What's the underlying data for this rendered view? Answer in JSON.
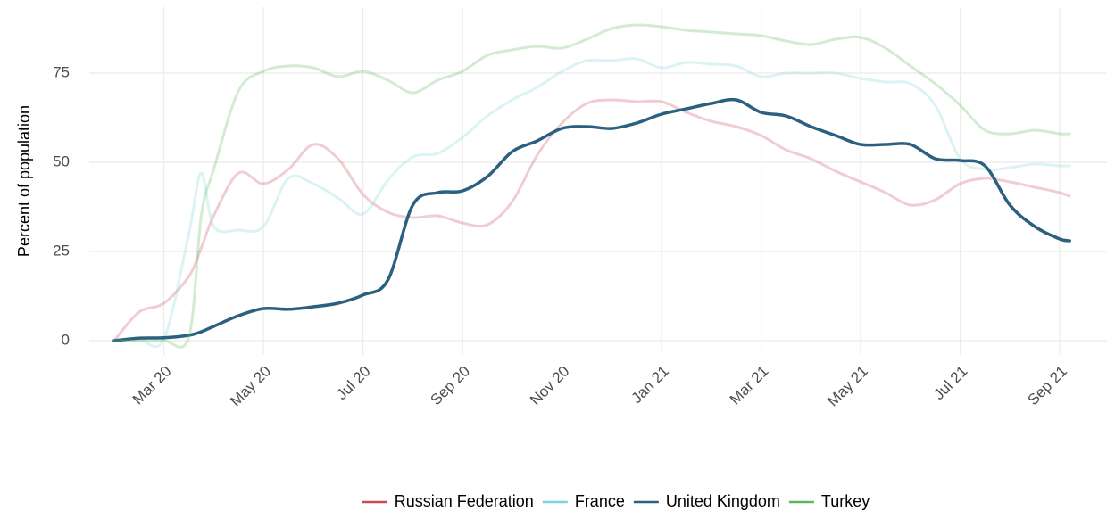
{
  "chart_data": {
    "type": "line",
    "y_label": "Percent of population",
    "x": [
      2,
      2.5,
      3,
      3.5,
      3.75,
      4,
      4.5,
      5,
      5.5,
      6,
      6.5,
      7,
      7.5,
      8,
      8.5,
      9,
      9.5,
      10,
      10.5,
      11,
      11.5,
      12,
      12.5,
      13,
      13.5,
      14,
      14.5,
      15,
      15.5,
      16,
      16.5,
      17,
      17.5,
      18,
      18.5,
      19,
      19.5,
      20,
      20.5,
      21,
      21.2
    ],
    "xlim": [
      1.5,
      21.95
    ],
    "xticks": [
      {
        "value": 3,
        "label": "Mar 20"
      },
      {
        "value": 5,
        "label": "May 20"
      },
      {
        "value": 7,
        "label": "Jul 20"
      },
      {
        "value": 9,
        "label": "Sep 20"
      },
      {
        "value": 11,
        "label": "Nov 20"
      },
      {
        "value": 13,
        "label": "Jan 21"
      },
      {
        "value": 15,
        "label": "Mar 21"
      },
      {
        "value": 17,
        "label": "May 21"
      },
      {
        "value": 19,
        "label": "Jul 21"
      },
      {
        "value": 21,
        "label": "Sep 21"
      }
    ],
    "ylim": [
      -4,
      93.5
    ],
    "yticks": [
      0,
      25,
      50,
      75
    ],
    "grid": true,
    "legend": "bottom",
    "series": [
      {
        "name": "Russian Federation",
        "color": "#c94a57",
        "opacity": 0.28,
        "values": [
          0,
          8,
          10.5,
          18,
          26,
          35,
          47,
          44,
          48,
          55,
          51,
          41,
          36,
          34.5,
          35,
          33,
          32.5,
          39,
          52,
          61,
          66.5,
          67.5,
          67,
          67,
          64,
          61.5,
          60,
          57.5,
          53.5,
          51,
          47.5,
          44.5,
          41.5,
          38,
          39.5,
          44,
          45.5,
          44.5,
          43,
          41.5,
          40.5
        ]
      },
      {
        "name": "France",
        "color": "#7fd3d8",
        "opacity": 0.28,
        "values": [
          0,
          0.3,
          0.5,
          30,
          47,
          32,
          31,
          32,
          45.5,
          44,
          40,
          35.5,
          45,
          51.5,
          52.5,
          57,
          63,
          67.5,
          71,
          75.5,
          78.5,
          78.5,
          79,
          76.5,
          78,
          77.5,
          77,
          74,
          75,
          75,
          75,
          73.5,
          72.5,
          72,
          66,
          51,
          48,
          48.5,
          49.5,
          49,
          49
        ]
      },
      {
        "name": "United Kingdom",
        "color": "#2c6080",
        "opacity": 1,
        "values": [
          0,
          0.7,
          0.8,
          1.5,
          2.5,
          4,
          7,
          9,
          8.8,
          9.5,
          10.5,
          12.8,
          17,
          38,
          41.5,
          42,
          46,
          53,
          56,
          59.5,
          60,
          59.5,
          61,
          63.5,
          65,
          66.5,
          67.5,
          64,
          63,
          60,
          57.5,
          55,
          55,
          55,
          51,
          50.5,
          49,
          38,
          32,
          28.5,
          28
        ]
      },
      {
        "name": "Turkey",
        "color": "#5cb85c",
        "opacity": 0.28,
        "values": [
          0,
          0,
          0,
          1,
          35,
          48,
          70,
          75.5,
          77,
          76.5,
          74,
          75.5,
          73,
          69.5,
          73,
          75.5,
          80,
          81.5,
          82.5,
          82,
          84.5,
          87.5,
          88.5,
          88,
          87,
          86.5,
          86,
          85.5,
          84,
          83,
          84.5,
          85,
          82,
          77,
          72,
          66,
          59,
          58,
          59,
          58,
          58
        ]
      }
    ]
  }
}
